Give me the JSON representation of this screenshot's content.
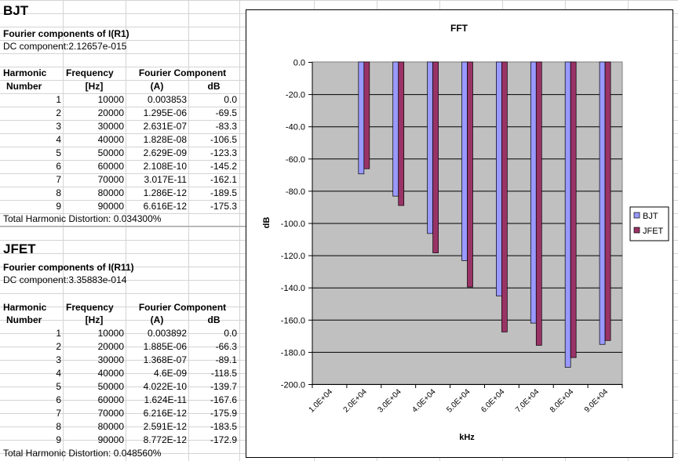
{
  "bjt": {
    "title": "BJT",
    "subtitle": "Fourier components of I(R1)",
    "dc": "DC component:2.12657e-015",
    "headers": {
      "harmonic": "Harmonic",
      "number": "Number",
      "frequency": "Frequency",
      "hz": "[Hz]",
      "fourier": "Fourier Component",
      "amp_unit": "(A)",
      "db": "dB"
    },
    "rows": [
      [
        "1",
        "10000",
        "0.003853",
        "0.0"
      ],
      [
        "2",
        "20000",
        "1.295E-06",
        "-69.5"
      ],
      [
        "3",
        "30000",
        "2.631E-07",
        "-83.3"
      ],
      [
        "4",
        "40000",
        "1.828E-08",
        "-106.5"
      ],
      [
        "5",
        "50000",
        "2.629E-09",
        "-123.3"
      ],
      [
        "6",
        "60000",
        "2.108E-10",
        "-145.2"
      ],
      [
        "7",
        "70000",
        "3.017E-11",
        "-162.1"
      ],
      [
        "8",
        "80000",
        "1.286E-12",
        "-189.5"
      ],
      [
        "9",
        "90000",
        "6.616E-12",
        "-175.3"
      ]
    ],
    "thd": "Total Harmonic Distortion: 0.034300%"
  },
  "jfet": {
    "title": "JFET",
    "subtitle": "Fourier components of I(R11)",
    "dc": "DC component:3.35883e-014",
    "headers": {
      "harmonic": "Harmonic",
      "number": "Number",
      "frequency": "Frequency",
      "hz": "[Hz]",
      "fourier": "Fourier Component",
      "amp_unit": "(A)",
      "db": "dB"
    },
    "rows": [
      [
        "1",
        "10000",
        "0.003892",
        "0.0"
      ],
      [
        "2",
        "20000",
        "1.885E-06",
        "-66.3"
      ],
      [
        "3",
        "30000",
        "1.368E-07",
        "-89.1"
      ],
      [
        "4",
        "40000",
        "4.6E-09",
        "-118.5"
      ],
      [
        "5",
        "50000",
        "4.022E-10",
        "-139.7"
      ],
      [
        "6",
        "60000",
        "1.624E-11",
        "-167.6"
      ],
      [
        "7",
        "70000",
        "6.216E-12",
        "-175.9"
      ],
      [
        "8",
        "80000",
        "2.591E-12",
        "-183.5"
      ],
      [
        "9",
        "90000",
        "8.772E-12",
        "-172.9"
      ]
    ],
    "thd": "Total Harmonic Distortion: 0.048560%"
  },
  "chart_data": {
    "type": "bar",
    "title": "FFT",
    "xlabel": "kHz",
    "ylabel": "dB",
    "categories": [
      "1.0E+04",
      "2.0E+04",
      "3.0E+04",
      "4.0E+04",
      "5.0E+04",
      "6.0E+04",
      "7.0E+04",
      "8.0E+04",
      "9.0E+04"
    ],
    "series": [
      {
        "name": "BJT",
        "color": "#9999ff",
        "values": [
          0.0,
          -69.5,
          -83.3,
          -106.5,
          -123.3,
          -145.2,
          -162.1,
          -189.5,
          -175.3
        ]
      },
      {
        "name": "JFET",
        "color": "#993366",
        "values": [
          0.0,
          -66.3,
          -89.1,
          -118.5,
          -139.7,
          -167.6,
          -175.9,
          -183.5,
          -172.9
        ]
      }
    ],
    "ylim": [
      -200,
      0
    ],
    "yticks": [
      "0.0",
      "-20.0",
      "-40.0",
      "-60.0",
      "-80.0",
      "-100.0",
      "-120.0",
      "-140.0",
      "-160.0",
      "-180.0",
      "-200.0"
    ],
    "grid": true,
    "plot_background": "#c0c0c0",
    "legend": "right"
  }
}
